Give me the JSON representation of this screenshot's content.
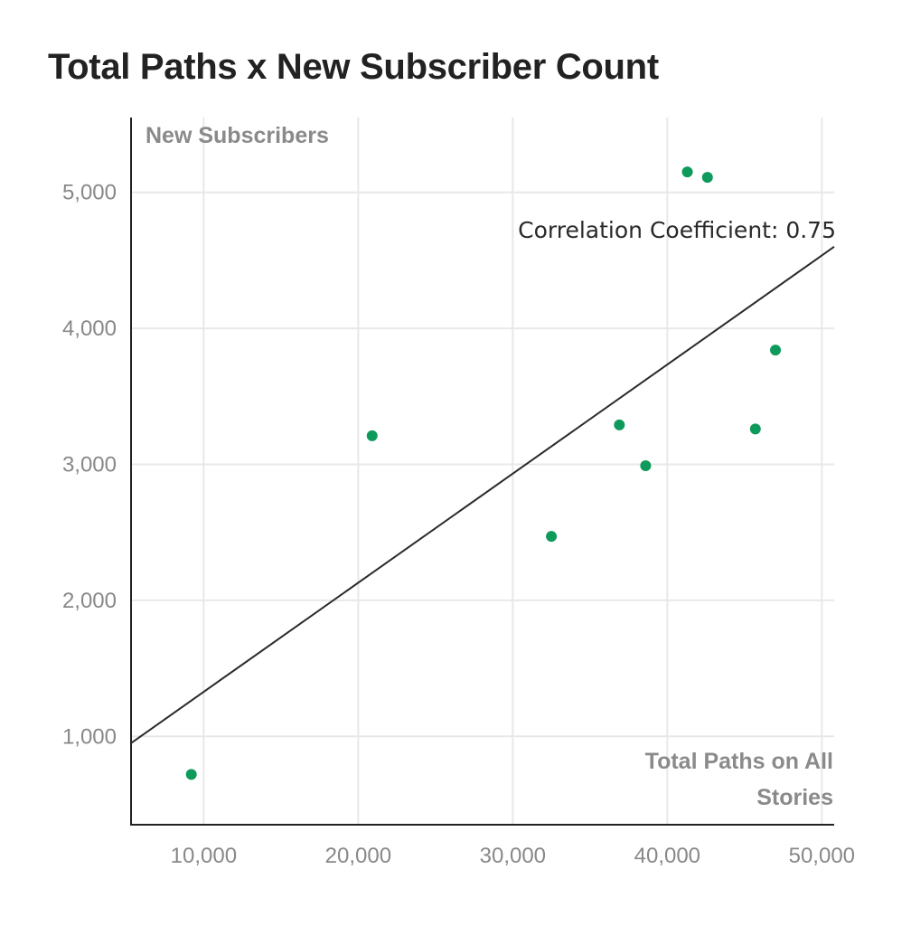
{
  "chart_data": {
    "type": "scatter",
    "title": "Total Paths x New Subscriber Count",
    "xlabel_lines": [
      "Total Paths on All",
      "Stories"
    ],
    "ylabel": "New Subscribers",
    "xlim": [
      5300,
      50800
    ],
    "ylim": [
      350,
      5550
    ],
    "x_ticks": [
      {
        "value": 10000,
        "label": "10,000"
      },
      {
        "value": 20000,
        "label": "20,000"
      },
      {
        "value": 30000,
        "label": "30,000"
      },
      {
        "value": 40000,
        "label": "40,000"
      },
      {
        "value": 50000,
        "label": "50,000"
      }
    ],
    "y_ticks": [
      {
        "value": 1000,
        "label": "1,000"
      },
      {
        "value": 2000,
        "label": "2,000"
      },
      {
        "value": 3000,
        "label": "3,000"
      },
      {
        "value": 4000,
        "label": "4,000"
      },
      {
        "value": 5000,
        "label": "5,000"
      }
    ],
    "points": [
      {
        "x": 9200,
        "y": 720
      },
      {
        "x": 20900,
        "y": 3210
      },
      {
        "x": 32500,
        "y": 2470
      },
      {
        "x": 36900,
        "y": 3290
      },
      {
        "x": 38600,
        "y": 2990
      },
      {
        "x": 41300,
        "y": 5150
      },
      {
        "x": 42600,
        "y": 5110
      },
      {
        "x": 45700,
        "y": 3260
      },
      {
        "x": 47000,
        "y": 3840
      }
    ],
    "trendline": {
      "x1": 5300,
      "y1": 950,
      "x2": 50800,
      "y2": 4600
    },
    "annotation": "Correlation Coefficient: 0.75",
    "grid": true,
    "colors": {
      "point": "#0e9a5a",
      "trendline": "#2a2a2a",
      "grid": "#e8e8e8",
      "axis": "#222222",
      "tick_label": "#888888",
      "axis_caption": "#8a8a8a",
      "title": "#222222"
    }
  }
}
